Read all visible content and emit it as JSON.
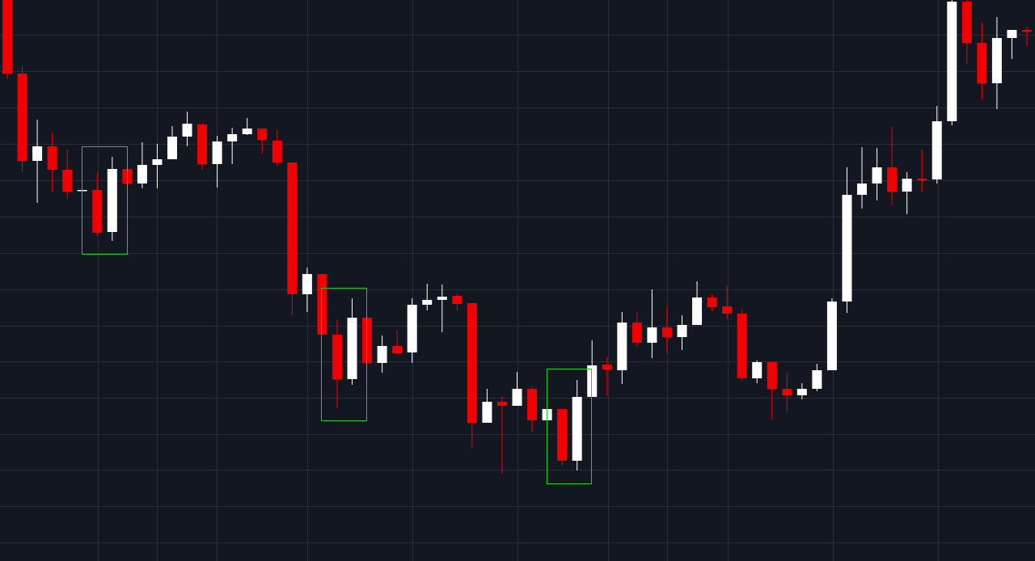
{
  "chart_data": {
    "type": "candlestick",
    "ylim": [
      0,
      694
    ],
    "up_color": "#ffffff",
    "down_color": "#f20000",
    "open": [
      694,
      603,
      495,
      513,
      484,
      458,
      459,
      407,
      485,
      467,
      490,
      497,
      525,
      540,
      491,
      519,
      528,
      535,
      520,
      493,
      330,
      355,
      280,
      225,
      301,
      245,
      266,
      258,
      317,
      323,
      328,
      319,
      171,
      197,
      192,
      213,
      174,
      188,
      124,
      203,
      243,
      236,
      295,
      270,
      289,
      277,
      292,
      326,
      315,
      306,
      226,
      246,
      213,
      205,
      213,
      236,
      321,
      453,
      467,
      487,
      457,
      473,
      472,
      544,
      692,
      641,
      591,
      647,
      657
    ],
    "high": [
      694,
      612,
      546,
      530,
      509,
      459,
      481,
      500,
      485,
      518,
      516,
      538,
      556,
      542,
      526,
      536,
      548,
      535,
      533,
      493,
      363,
      355,
      299,
      325,
      301,
      279,
      285,
      325,
      343,
      342,
      331,
      319,
      213,
      204,
      234,
      216,
      188,
      188,
      224,
      273,
      252,
      308,
      308,
      336,
      315,
      304,
      346,
      330,
      340,
      311,
      248,
      246,
      233,
      220,
      244,
      325,
      487,
      512,
      511,
      537,
      481,
      509,
      563,
      694,
      694,
      667,
      673,
      657,
      661
    ],
    "low": [
      596,
      481,
      443,
      456,
      448,
      458,
      402,
      396,
      467,
      461,
      461,
      497,
      513,
      484,
      462,
      491,
      527,
      504,
      488,
      304,
      308,
      280,
      189,
      218,
      245,
      233,
      257,
      245,
      310,
      283,
      310,
      141,
      171,
      108,
      192,
      160,
      174,
      118,
      112,
      203,
      204,
      219,
      265,
      251,
      257,
      261,
      292,
      309,
      299,
      222,
      220,
      175,
      185,
      200,
      210,
      236,
      307,
      436,
      446,
      440,
      429,
      457,
      467,
      539,
      615,
      571,
      559,
      621,
      637
    ],
    "close": [
      603,
      495,
      513,
      484,
      457,
      459,
      406,
      485,
      467,
      490,
      497,
      525,
      541,
      491,
      519,
      528,
      535,
      521,
      493,
      330,
      355,
      280,
      225,
      301,
      245,
      266,
      257,
      317,
      323,
      327,
      318,
      171,
      197,
      192,
      213,
      174,
      188,
      124,
      203,
      242,
      237,
      295,
      270,
      289,
      277,
      292,
      326,
      314,
      306,
      226,
      246,
      213,
      205,
      213,
      236,
      321,
      453,
      467,
      487,
      457,
      473,
      471,
      544,
      692,
      641,
      591,
      647,
      657,
      655
    ]
  }
}
